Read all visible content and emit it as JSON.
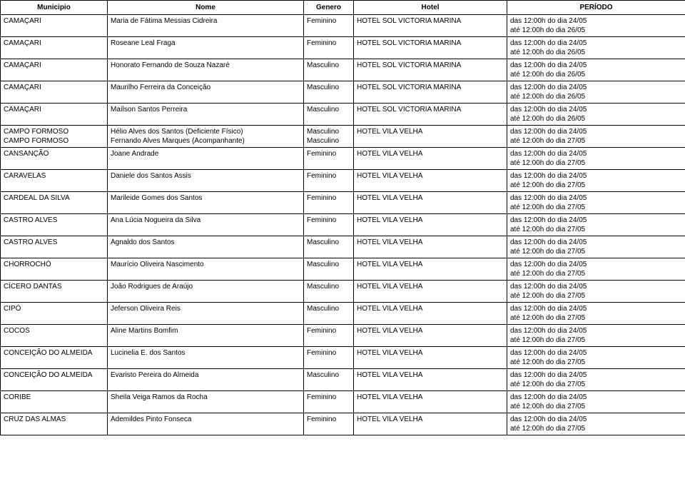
{
  "columns": [
    "Municipio",
    "Nome",
    "Genero",
    "Hotel",
    "PERÍODO"
  ],
  "rows": [
    {
      "municipio": "CAMAÇARI",
      "nome": "Maria de Fátima Messias Cidreira",
      "genero": "Feminino",
      "hotel": "HOTEL SOL VICTORIA MARINA",
      "periodo": [
        "das 12:00h do dia 24/05",
        "até 12:00h do dia 26/05"
      ]
    },
    {
      "municipio": "CAMAÇARI",
      "nome": "Roseane Leal Fraga",
      "genero": "Feminino",
      "hotel": "HOTEL SOL VICTORIA MARINA",
      "periodo": [
        "das 12:00h do dia 24/05",
        "até 12:00h do dia 26/05"
      ]
    },
    {
      "municipio": "CAMAÇARI",
      "nome": "Honorato Fernando de Souza Nazaré",
      "genero": "Masculino",
      "hotel": "HOTEL SOL VICTORIA MARINA",
      "periodo": [
        "das 12:00h do dia 24/05",
        "até 12:00h do dia 26/05"
      ]
    },
    {
      "municipio": "CAMAÇARI",
      "nome": "Maurilho Ferreira da Conceição",
      "genero": "Masculino",
      "hotel": "HOTEL SOL VICTORIA MARINA",
      "periodo": [
        "das 12:00h do dia 24/05",
        "até 12:00h do dia 26/05"
      ]
    },
    {
      "municipio": "CAMAÇARI",
      "nome": "Maílson Santos Perreira",
      "genero": "Masculino",
      "hotel": "HOTEL SOL VICTORIA MARINA",
      "periodo": [
        "das 12:00h do dia 24/05",
        "até 12:00h do dia 26/05"
      ]
    },
    {
      "municipio": [
        "CAMPO FORMOSO",
        "CAMPO FORMOSO"
      ],
      "nome": [
        "Hélio Alves dos Santos (Deficiente Físico)",
        "Fernando Alves Marques (Acompanhante)"
      ],
      "genero": [
        "Masculino",
        "Masculino"
      ],
      "hotel": "HOTEL VILA VELHA",
      "periodo": [
        "das 12:00h do dia 24/05",
        "até 12:00h do dia 27/05"
      ]
    },
    {
      "municipio": "CANSANÇÃO",
      "nome": "Joane Andrade",
      "genero": "Feminino",
      "hotel": "HOTEL VILA VELHA",
      "periodo": [
        "das 12:00h do dia 24/05",
        "até 12:00h do dia 27/05"
      ]
    },
    {
      "municipio": "CARAVELAS",
      "nome": "Daniele dos Santos Assis",
      "genero": "Feminino",
      "hotel": "HOTEL VILA VELHA",
      "periodo": [
        "das 12:00h do dia 24/05",
        "até 12:00h do dia 27/05"
      ]
    },
    {
      "municipio": "CARDEAL DA SILVA",
      "nome": "Marileide Gomes dos Santos",
      "genero": "Feminino",
      "hotel": "HOTEL VILA VELHA",
      "periodo": [
        "das 12:00h do dia 24/05",
        "até 12:00h do dia 27/05"
      ]
    },
    {
      "municipio": "CASTRO ALVES",
      "nome": "Ana Lúcia Nogueira da Silva",
      "genero": "Feminino",
      "hotel": "HOTEL VILA VELHA",
      "periodo": [
        "das 12:00h do dia 24/05",
        "até 12:00h do dia 27/05"
      ]
    },
    {
      "municipio": "CASTRO ALVES",
      "nome": "Agnaldo dos Santos",
      "genero": "Masculino",
      "hotel": "HOTEL VILA VELHA",
      "periodo": [
        "das 12:00h do dia 24/05",
        "até 12:00h do dia 27/05"
      ]
    },
    {
      "municipio": "CHORROCHÓ",
      "nome": "Maurício Oliveira Nascimento",
      "genero": "Masculino",
      "hotel": "HOTEL VILA VELHA",
      "periodo": [
        "das 12:00h do dia 24/05",
        "até 12:00h do dia 27/05"
      ]
    },
    {
      "municipio": "CÍCERO DANTAS",
      "nome": "João Rodrigues de Araújo",
      "genero": "Masculino",
      "hotel": "HOTEL VILA VELHA",
      "periodo": [
        "das 12:00h do dia 24/05",
        "até 12:00h do dia 27/05"
      ]
    },
    {
      "municipio": "CIPÓ",
      "nome": "Jeferson Oliveira Reis",
      "genero": "Masculino",
      "hotel": "HOTEL VILA VELHA",
      "periodo": [
        "das 12:00h do dia 24/05",
        "até 12:00h do dia 27/05"
      ]
    },
    {
      "municipio": "COCOS",
      "nome": "Aline Martins Bomfim",
      "genero": "Feminino",
      "hotel": "HOTEL VILA VELHA",
      "periodo": [
        "das 12:00h do dia 24/05",
        "até 12:00h do dia 27/05"
      ]
    },
    {
      "municipio": "CONCEIÇÃO DO ALMEIDA",
      "nome": "Lucinelia E. dos Santos",
      "genero": "Feminino",
      "hotel": "HOTEL VILA VELHA",
      "periodo": [
        "das 12:00h do dia 24/05",
        "até 12:00h do dia 27/05"
      ]
    },
    {
      "municipio": "CONCEIÇÃO DO ALMEIDA",
      "nome": "Evaristo Pereira do Almeida",
      "genero": "Masculino",
      "hotel": "HOTEL VILA VELHA",
      "periodo": [
        "das 12:00h do dia 24/05",
        "até 12:00h do dia 27/05"
      ]
    },
    {
      "municipio": "CORIBE",
      "nome": "Sheila Veiga Ramos da Rocha",
      "genero": "Feminino",
      "hotel": "HOTEL VILA VELHA",
      "periodo": [
        "das 12:00h do dia 24/05",
        "até 12:00h do dia 27/05"
      ]
    },
    {
      "municipio": "CRUZ DAS ALMAS",
      "nome": "Ademildes Pinto Fonseca",
      "genero": "Feminino",
      "hotel": "HOTEL VILA VELHA",
      "periodo": [
        "das 12:00h do dia 24/05",
        "até 12:00h do dia 27/05"
      ]
    }
  ]
}
